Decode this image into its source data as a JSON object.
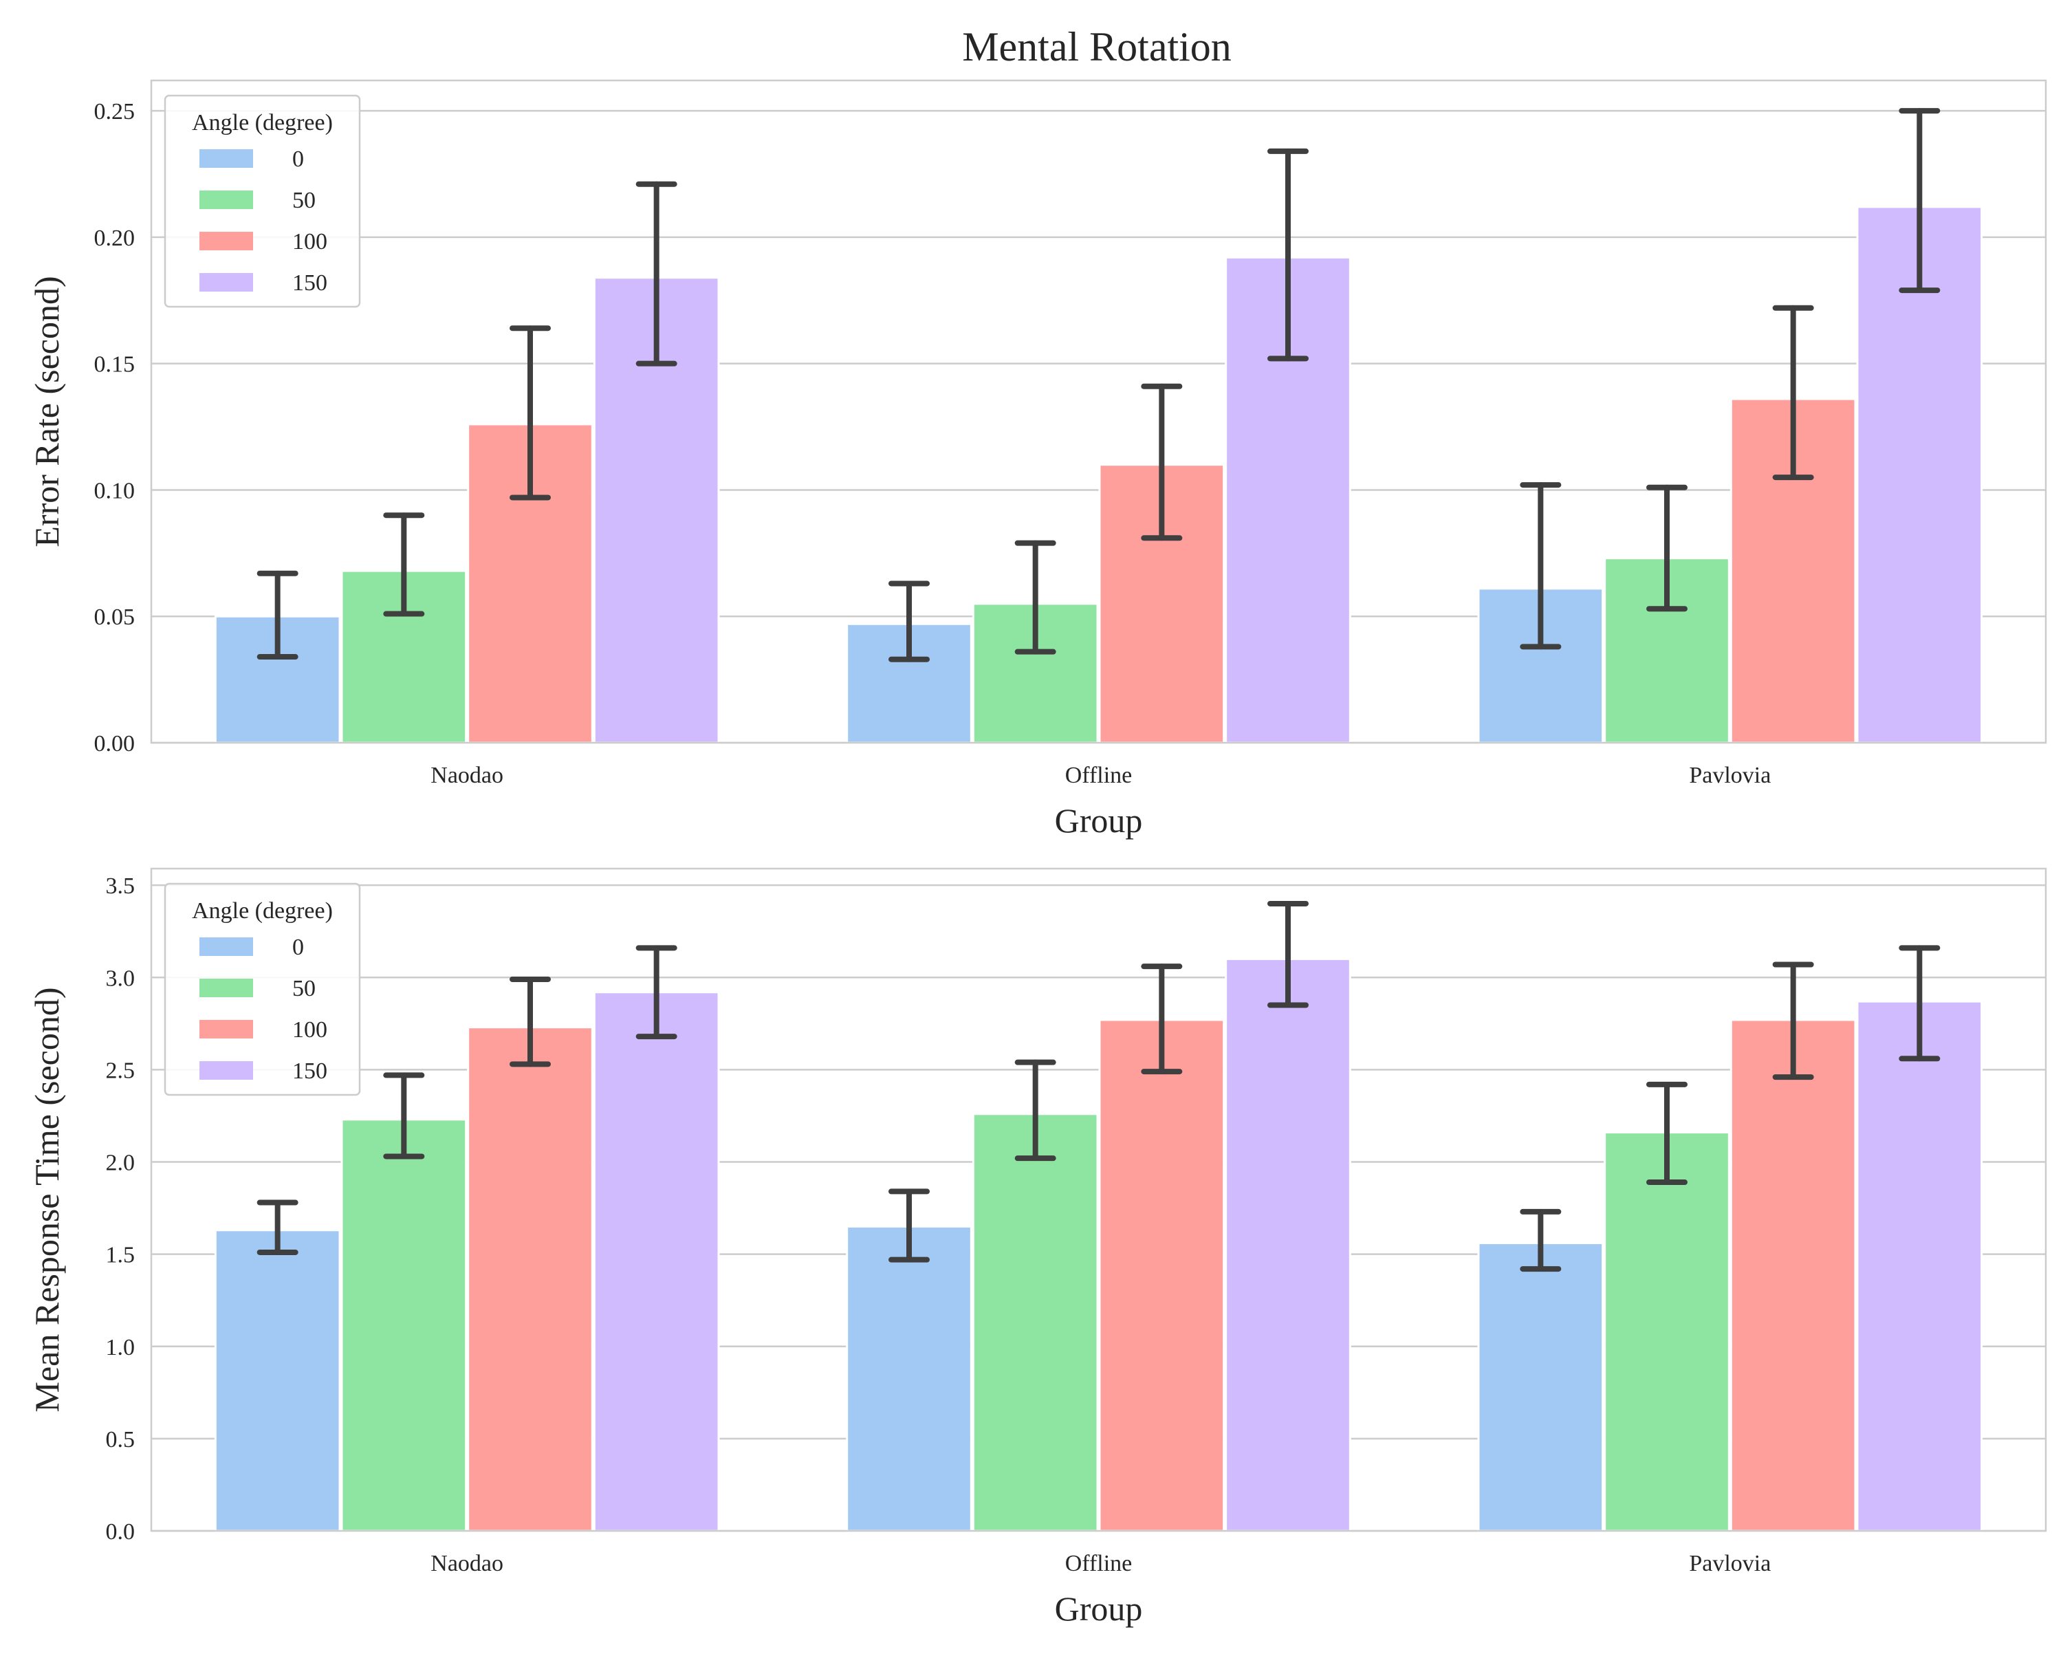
{
  "figure": {
    "title": "Mental Rotation"
  },
  "colors": {
    "0": "#a1c9f4",
    "50": "#8de5a1",
    "100": "#ff9f9b",
    "150": "#d0bbff",
    "errorbar": "#3f3f3f",
    "grid": "#cccccc",
    "frame": "#cccccc"
  },
  "chart_data": [
    {
      "type": "bar",
      "title": "",
      "xlabel": "Group",
      "ylabel": "Error Rate (second)",
      "ylim": [
        0,
        0.262
      ],
      "yticks": [
        0,
        0.05,
        0.1,
        0.15,
        0.2,
        0.25
      ],
      "ytick_labels": [
        "0.00",
        "0.05",
        "0.10",
        "0.15",
        "0.20",
        "0.25"
      ],
      "grid": true,
      "categories": [
        "Naodao",
        "Offline",
        "Pavlovia"
      ],
      "legend": {
        "title": "Angle (degree)",
        "position": "upper-left"
      },
      "series": [
        {
          "name": "0",
          "values": [
            0.05,
            0.047,
            0.061
          ],
          "err_low": [
            0.034,
            0.033,
            0.038
          ],
          "err_high": [
            0.067,
            0.063,
            0.102
          ]
        },
        {
          "name": "50",
          "values": [
            0.068,
            0.055,
            0.073
          ],
          "err_low": [
            0.051,
            0.036,
            0.053
          ],
          "err_high": [
            0.09,
            0.079,
            0.101
          ]
        },
        {
          "name": "100",
          "values": [
            0.126,
            0.11,
            0.136
          ],
          "err_low": [
            0.097,
            0.081,
            0.105
          ],
          "err_high": [
            0.164,
            0.141,
            0.172
          ]
        },
        {
          "name": "150",
          "values": [
            0.184,
            0.192,
            0.212
          ],
          "err_low": [
            0.15,
            0.152,
            0.179
          ],
          "err_high": [
            0.221,
            0.234,
            0.25
          ]
        }
      ]
    },
    {
      "type": "bar",
      "title": "",
      "xlabel": "Group",
      "ylabel": "Mean Response Time (second)",
      "ylim": [
        0,
        3.59
      ],
      "yticks": [
        0,
        0.5,
        1.0,
        1.5,
        2.0,
        2.5,
        3.0,
        3.5
      ],
      "ytick_labels": [
        "0.0",
        "0.5",
        "1.0",
        "1.5",
        "2.0",
        "2.5",
        "3.0",
        "3.5"
      ],
      "grid": true,
      "categories": [
        "Naodao",
        "Offline",
        "Pavlovia"
      ],
      "legend": {
        "title": "Angle (degree)",
        "position": "upper-left"
      },
      "series": [
        {
          "name": "0",
          "values": [
            1.63,
            1.65,
            1.56
          ],
          "err_low": [
            1.51,
            1.47,
            1.42
          ],
          "err_high": [
            1.78,
            1.84,
            1.73
          ]
        },
        {
          "name": "50",
          "values": [
            2.23,
            2.26,
            2.16
          ],
          "err_low": [
            2.03,
            2.02,
            1.89
          ],
          "err_high": [
            2.47,
            2.54,
            2.42
          ]
        },
        {
          "name": "100",
          "values": [
            2.73,
            2.77,
            2.77
          ],
          "err_low": [
            2.53,
            2.49,
            2.46
          ],
          "err_high": [
            2.99,
            3.06,
            3.07
          ]
        },
        {
          "name": "150",
          "values": [
            2.92,
            3.1,
            2.87
          ],
          "err_low": [
            2.68,
            2.85,
            2.56
          ],
          "err_high": [
            3.16,
            3.4,
            3.16
          ]
        }
      ]
    }
  ]
}
